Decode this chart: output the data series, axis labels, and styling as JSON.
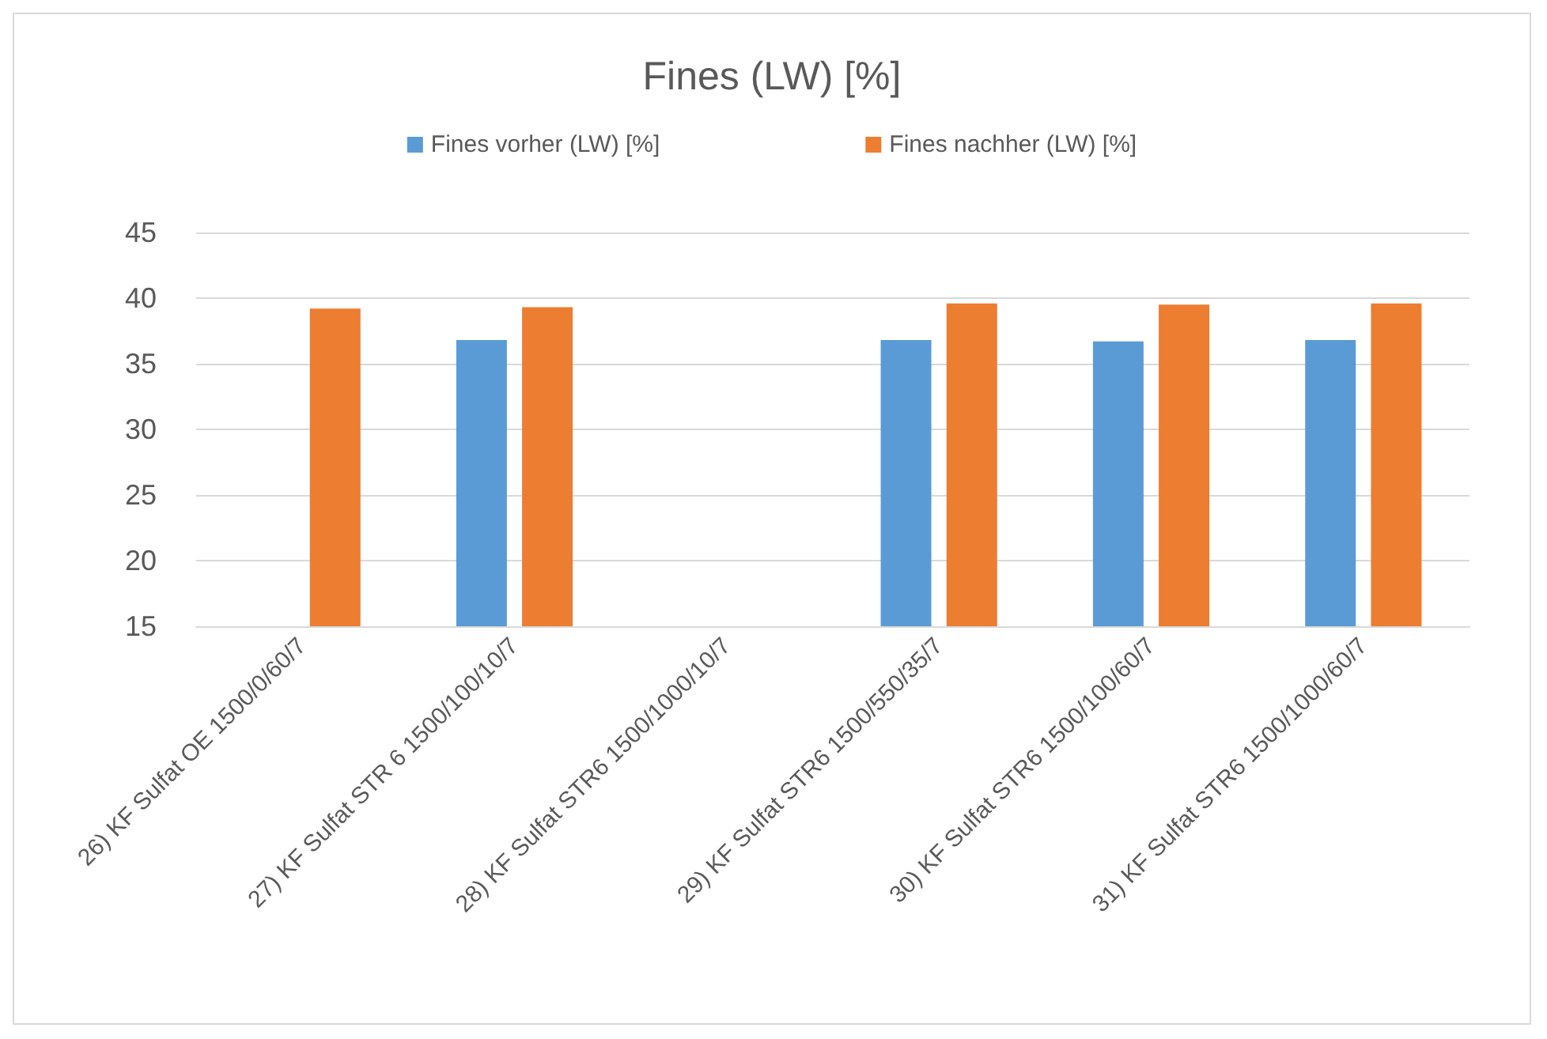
{
  "chart_data": {
    "type": "bar",
    "title": "Fines (LW) [%]",
    "categories": [
      "26) KF Sulfat OE 1500/0/60/7",
      "27) KF Sulfat STR 6 1500/100/10/7",
      "28) KF Sulfat STR6 1500/1000/10/7",
      "29) KF Sulfat STR6 1500/550/35/7",
      "30) KF Sulfat STR6 1500/100/60/7",
      "31) KF Sulfat STR6 1500/1000/60/7"
    ],
    "series": [
      {
        "name": "Fines vorher (LW) [%]",
        "color": "#5b9bd5",
        "values": [
          null,
          36.8,
          null,
          36.8,
          36.7,
          36.8
        ]
      },
      {
        "name": "Fines nachher (LW) [%]",
        "color": "#ed7d31",
        "values": [
          39.2,
          39.3,
          null,
          39.6,
          39.5,
          39.6
        ]
      }
    ],
    "ylim": [
      15,
      45
    ],
    "yticks": [
      15,
      20,
      25,
      30,
      35,
      40,
      45
    ],
    "grid": "y",
    "legend": "top"
  }
}
